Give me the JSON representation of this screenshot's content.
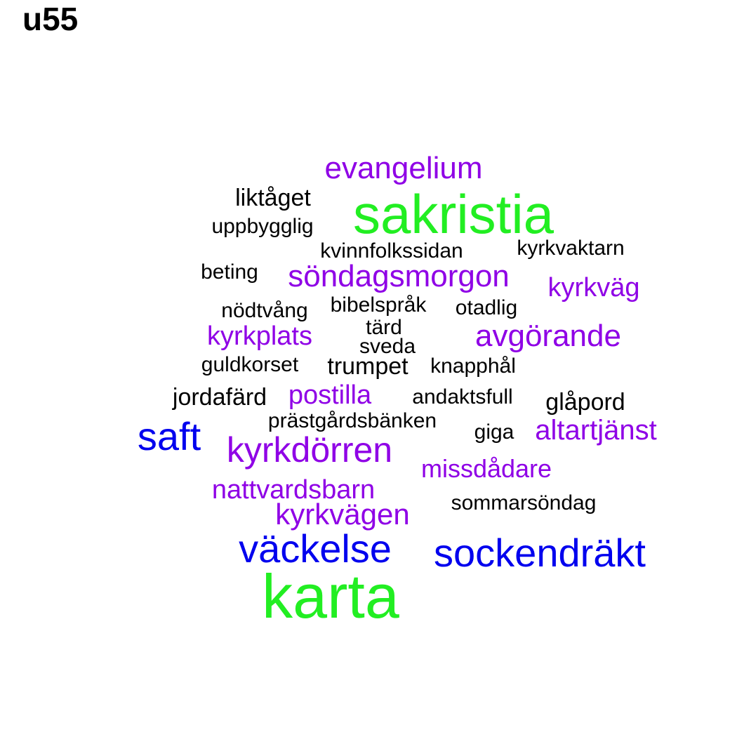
{
  "title": "u55",
  "colors": {
    "green": "#22ee22",
    "blue": "#0000ee",
    "purple": "#8f00e6",
    "black": "#000000"
  },
  "words": [
    {
      "text": "karta",
      "color": "green"
    },
    {
      "text": "sakristia",
      "color": "green"
    },
    {
      "text": "evangelium",
      "color": "purple"
    },
    {
      "text": "liktåget",
      "color": "black"
    },
    {
      "text": "uppbygglig",
      "color": "black"
    },
    {
      "text": "kvinnfolkssidan",
      "color": "black"
    },
    {
      "text": "kyrkvaktarn",
      "color": "black"
    },
    {
      "text": "beting",
      "color": "black"
    },
    {
      "text": "söndagsmorgon",
      "color": "purple"
    },
    {
      "text": "kyrkväg",
      "color": "purple"
    },
    {
      "text": "nödtvång",
      "color": "black"
    },
    {
      "text": "bibelspråk",
      "color": "black"
    },
    {
      "text": "otadlig",
      "color": "black"
    },
    {
      "text": "tärd",
      "color": "black"
    },
    {
      "text": "kyrkplats",
      "color": "purple"
    },
    {
      "text": "avgörande",
      "color": "purple"
    },
    {
      "text": "sveda",
      "color": "black"
    },
    {
      "text": "guldkorset",
      "color": "black"
    },
    {
      "text": "trumpet",
      "color": "black"
    },
    {
      "text": "knapphål",
      "color": "black"
    },
    {
      "text": "jordafärd",
      "color": "black"
    },
    {
      "text": "postilla",
      "color": "purple"
    },
    {
      "text": "andaktsfull",
      "color": "black"
    },
    {
      "text": "glåpord",
      "color": "black"
    },
    {
      "text": "prästgårdsbänken",
      "color": "black"
    },
    {
      "text": "saft",
      "color": "blue"
    },
    {
      "text": "giga",
      "color": "black"
    },
    {
      "text": "altartjänst",
      "color": "purple"
    },
    {
      "text": "kyrkdörren",
      "color": "purple"
    },
    {
      "text": "missdådare",
      "color": "purple"
    },
    {
      "text": "nattvardsbarn",
      "color": "purple"
    },
    {
      "text": "sommarsöndag",
      "color": "black"
    },
    {
      "text": "kyrkvägen",
      "color": "purple"
    },
    {
      "text": "väckelse",
      "color": "blue"
    },
    {
      "text": "sockendräkt",
      "color": "blue"
    }
  ]
}
